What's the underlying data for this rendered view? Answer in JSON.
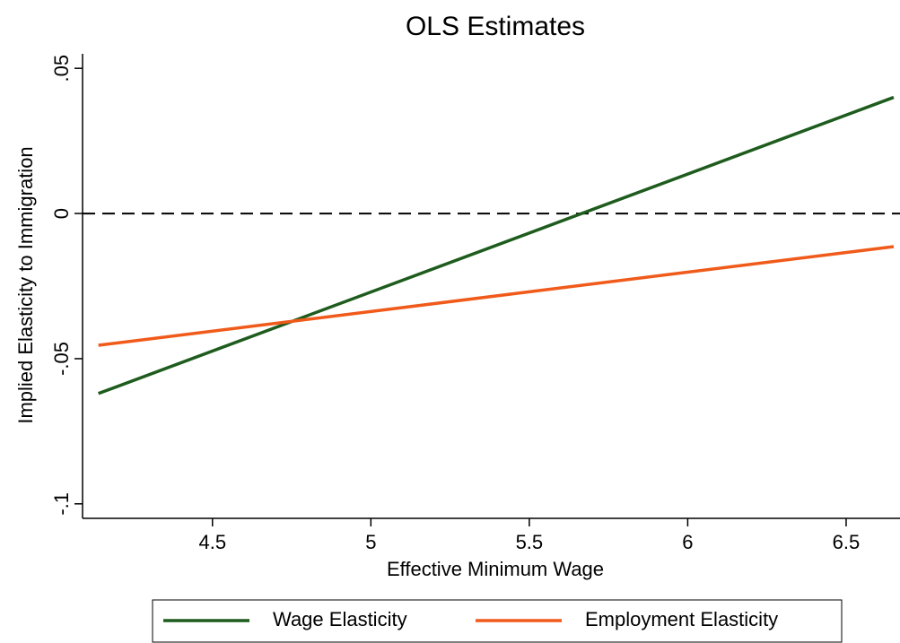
{
  "chart_data": {
    "type": "line",
    "title": "OLS Estimates",
    "x_label": "Effective Minimum Wage",
    "y_label": "Implied Elasticity to Immigration",
    "x": [
      4.14,
      6.65
    ],
    "series": [
      {
        "name": "Wage Elasticity",
        "color": "#1e5c1e",
        "values": [
          -0.062,
          0.04
        ]
      },
      {
        "name": "Employment Elasticity",
        "color": "#f05a1a",
        "values": [
          -0.0454,
          -0.0114
        ]
      }
    ],
    "xlim": [
      4.09,
      6.67
    ],
    "ylim": [
      -0.105,
      0.055
    ],
    "xticks": [
      4.5,
      5,
      5.5,
      6,
      6.5
    ],
    "yticks": [
      {
        "value": -0.1,
        "label": "-.1"
      },
      {
        "value": -0.05,
        "label": "-.05"
      },
      0,
      {
        "value": 0.05,
        "label": ".05"
      }
    ],
    "hline": 0,
    "legend": "bottom"
  }
}
